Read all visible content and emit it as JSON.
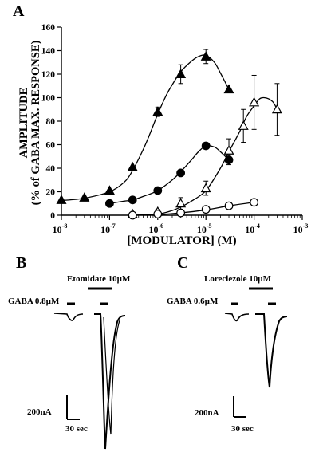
{
  "panels": {
    "A": "A",
    "B": "B",
    "C": "C"
  },
  "chart_data": {
    "type": "scatter",
    "xlabel": "[MODULATOR] (M)",
    "ylabel": "AMPLITUDE",
    "ylabel_sub": "(% of GABA MAX. RESPONSE)",
    "x_scale": "log",
    "xlim": [
      1e-08,
      0.001
    ],
    "ylim": [
      0,
      160
    ],
    "yticks": [
      0,
      20,
      40,
      60,
      80,
      100,
      120,
      140,
      160
    ],
    "xticks": [
      {
        "value": 1e-08,
        "base": "10",
        "exp": "-8"
      },
      {
        "value": 1e-07,
        "base": "10",
        "exp": "-7"
      },
      {
        "value": 1e-06,
        "base": "10",
        "exp": "-6"
      },
      {
        "value": 1e-05,
        "base": "10",
        "exp": "-5"
      },
      {
        "value": 0.0001,
        "base": "10",
        "exp": "-4"
      },
      {
        "value": 0.001,
        "base": "10",
        "exp": "-3"
      }
    ],
    "grid": false,
    "legend": "none",
    "series": [
      {
        "marker": "filled-triangle",
        "x": [
          1e-08,
          3e-08,
          1e-07,
          3e-07,
          1e-06,
          3e-06,
          1e-05,
          3e-05
        ],
        "y": [
          13,
          15,
          21,
          41,
          88,
          120,
          135,
          107
        ],
        "err": [
          0,
          0,
          0,
          0,
          4,
          8,
          6,
          0
        ],
        "curve": [
          [
            1e-08,
            12.5
          ],
          [
            3e-08,
            14.5
          ],
          [
            1e-07,
            20
          ],
          [
            2e-07,
            28
          ],
          [
            3e-07,
            38
          ],
          [
            5e-07,
            56
          ],
          [
            7e-07,
            70
          ],
          [
            1e-06,
            86
          ],
          [
            1.5e-06,
            102
          ],
          [
            2e-06,
            111
          ],
          [
            3e-06,
            122
          ],
          [
            5e-06,
            131
          ],
          [
            7e-06,
            135
          ],
          [
            1e-05,
            136
          ],
          [
            1.5e-05,
            130
          ],
          [
            2e-05,
            121
          ],
          [
            3e-05,
            107
          ]
        ]
      },
      {
        "marker": "filled-circle",
        "x": [
          1e-07,
          3e-07,
          1e-06,
          3e-06,
          1e-05,
          3e-05
        ],
        "y": [
          10,
          13,
          21,
          36,
          59,
          47
        ],
        "err": [
          0,
          0,
          0,
          0,
          0,
          4
        ],
        "curve": [
          [
            1e-07,
            10
          ],
          [
            2e-07,
            12
          ],
          [
            3e-07,
            13
          ],
          [
            5e-07,
            16
          ],
          [
            1e-06,
            21
          ],
          [
            2e-06,
            30
          ],
          [
            3e-06,
            37
          ],
          [
            5e-06,
            47
          ],
          [
            7e-06,
            54
          ],
          [
            1e-05,
            59
          ],
          [
            1.5e-05,
            58
          ],
          [
            2e-05,
            54
          ],
          [
            3e-05,
            47
          ]
        ]
      },
      {
        "marker": "open-triangle",
        "x": [
          3e-07,
          1e-06,
          3e-06,
          1e-05,
          3e-05,
          6e-05,
          0.0001,
          0.0003
        ],
        "y": [
          1,
          3,
          10,
          23,
          55,
          76,
          96,
          90
        ],
        "err": [
          0,
          2,
          5,
          6,
          10,
          14,
          23,
          22
        ],
        "curve": [
          [
            3e-07,
            0
          ],
          [
            1e-06,
            1
          ],
          [
            2e-06,
            4
          ],
          [
            3e-06,
            7
          ],
          [
            5e-06,
            12
          ],
          [
            1e-05,
            21
          ],
          [
            2e-05,
            40
          ],
          [
            3e-05,
            54
          ],
          [
            5e-05,
            71
          ],
          [
            7e-05,
            84
          ],
          [
            0.0001,
            93
          ],
          [
            0.00013,
            99
          ],
          [
            0.00016,
            100
          ],
          [
            0.0002,
            99
          ],
          [
            0.00025,
            96
          ],
          [
            0.0003,
            90
          ]
        ]
      },
      {
        "marker": "open-circle",
        "x": [
          3e-07,
          1e-06,
          3e-06,
          1e-05,
          3e-05,
          0.0001
        ],
        "y": [
          0,
          1,
          2,
          5,
          8,
          11
        ],
        "err": [
          0,
          0,
          0,
          0,
          0,
          0
        ],
        "curve": [
          [
            3e-07,
            0
          ],
          [
            1e-06,
            0.5
          ],
          [
            3e-06,
            2
          ],
          [
            1e-05,
            4.5
          ],
          [
            3e-05,
            8
          ],
          [
            0.0001,
            11
          ]
        ]
      }
    ]
  },
  "traces": {
    "B": {
      "drug_label": "Etomidate 10µM",
      "gaba_label": "GABA 0.8µM",
      "scale_current": "200nA",
      "scale_time": "30 sec"
    },
    "C": {
      "drug_label": "Loreclezole 10µM",
      "gaba_label": "GABA 0.6µM",
      "scale_current": "200nA",
      "scale_time": "30 sec"
    }
  }
}
